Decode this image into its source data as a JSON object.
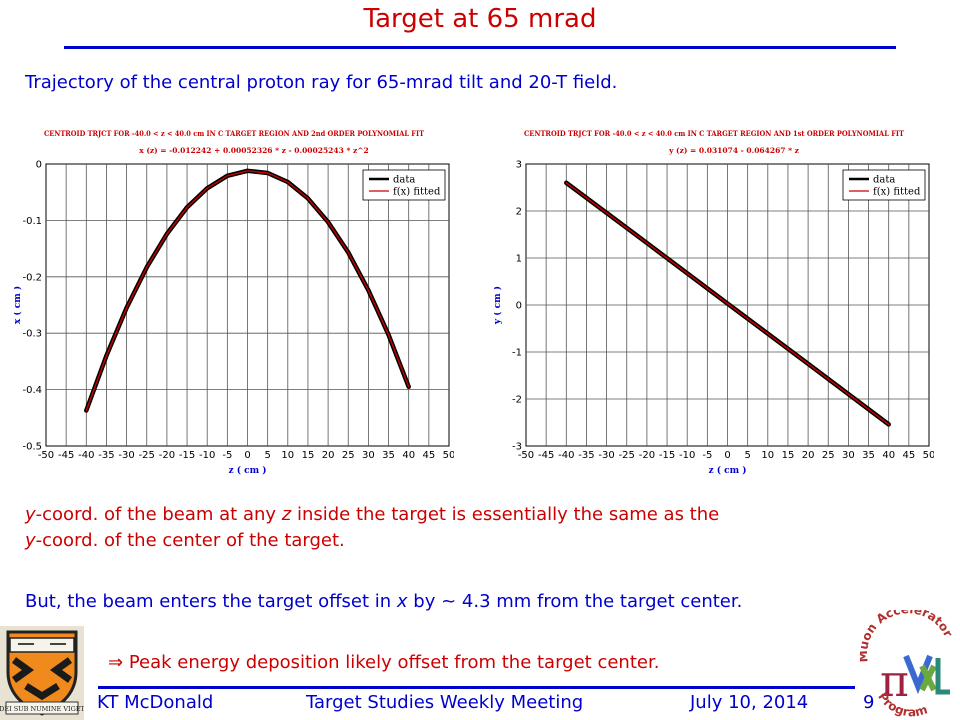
{
  "slide": {
    "title": "Target at 65 mrad",
    "subtitle": "Trajectory of the central proton ray for 65-mrad tilt and 20-T field.",
    "para_y": {
      "y_var": "y",
      "text1": "-coord. of the beam at any ",
      "z_var": "z",
      "text2": " inside the target is essentially the same as the ",
      "y_var2": "y",
      "text3": "-coord. of the center of the target."
    },
    "para_x": {
      "text1": "But, the beam enters the target offset in ",
      "x_var": "x",
      "text2": " by ~ 4.3 mm from the target center."
    },
    "peak": {
      "arrow": "⇒",
      "text": "Peak energy deposition likely offset from the target center."
    }
  },
  "footer": {
    "author": "KT McDonald",
    "meeting": "Target Studies Weekly Meeting",
    "date": "July 10, 2014",
    "page": "9"
  },
  "logos": {
    "princeton_motto": "DEI SUB NUMINE VIGET",
    "map_text_top": "Muon Accelerator",
    "map_text_bottom": "Program",
    "map_pi": "π"
  },
  "chart_data": [
    {
      "type": "line",
      "title": "CENTROID TRJCT FOR -40.0 < z < 40.0 cm IN C TARGET REGION AND 2nd ORDER POLYNOMIAL FIT",
      "fit_equation": "x (z) = -0.012242 + 0.00052326 * z - 0.00025243 * z^2",
      "xlabel": "z ( cm )",
      "ylabel": "x ( cm )",
      "xlim": [
        -50,
        50
      ],
      "ylim": [
        -0.5,
        0
      ],
      "xticks": [
        -50,
        -45,
        -40,
        -35,
        -30,
        -25,
        -20,
        -15,
        -10,
        -5,
        0,
        5,
        10,
        15,
        20,
        25,
        30,
        35,
        40,
        45,
        50
      ],
      "yticks": [
        0,
        -0.1,
        -0.2,
        -0.3,
        -0.4,
        -0.5
      ],
      "ytick_labels": [
        "0",
        "-0.1",
        "-0.2",
        "-0.3",
        "-0.4",
        "-0.5"
      ],
      "grid": true,
      "legend_position": "top-right",
      "series": [
        {
          "name": "data",
          "color": "#000000",
          "x": [
            -40,
            -35,
            -30,
            -25,
            -20,
            -15,
            -10,
            -5,
            0,
            5,
            10,
            15,
            20,
            25,
            30,
            35,
            40
          ],
          "y": [
            -0.437,
            -0.34,
            -0.255,
            -0.183,
            -0.124,
            -0.077,
            -0.043,
            -0.021,
            -0.012,
            -0.016,
            -0.032,
            -0.061,
            -0.103,
            -0.157,
            -0.224,
            -0.303,
            -0.395
          ]
        },
        {
          "name": "f(x) fitted",
          "color": "#cc0000",
          "x": [
            -40,
            -35,
            -30,
            -25,
            -20,
            -15,
            -10,
            -5,
            0,
            5,
            10,
            15,
            20,
            25,
            30,
            35,
            40
          ],
          "y": [
            -0.437,
            -0.34,
            -0.255,
            -0.183,
            -0.124,
            -0.077,
            -0.043,
            -0.021,
            -0.012,
            -0.016,
            -0.032,
            -0.061,
            -0.103,
            -0.157,
            -0.224,
            -0.303,
            -0.395
          ]
        }
      ]
    },
    {
      "type": "line",
      "title": "CENTROID TRJCT FOR -40.0 < z < 40.0 cm IN C TARGET REGION AND 1st ORDER POLYNOMIAL FIT",
      "fit_equation": "y (z) = 0.031074 - 0.064267 * z",
      "xlabel": "z ( cm )",
      "ylabel": "y ( cm )",
      "xlim": [
        -50,
        50
      ],
      "ylim": [
        -3,
        3
      ],
      "xticks": [
        -50,
        -45,
        -40,
        -35,
        -30,
        -25,
        -20,
        -15,
        -10,
        -5,
        0,
        5,
        10,
        15,
        20,
        25,
        30,
        35,
        40,
        45,
        50
      ],
      "yticks": [
        3,
        2,
        1,
        0,
        -1,
        -2,
        -3
      ],
      "ytick_labels": [
        "3",
        "2",
        "1",
        "0",
        "-1",
        "-2",
        "-3"
      ],
      "grid": true,
      "legend_position": "top-right",
      "series": [
        {
          "name": "data",
          "color": "#000000",
          "x": [
            -40,
            -20,
            0,
            20,
            40
          ],
          "y": [
            2.6,
            1.32,
            0.03,
            -1.25,
            -2.54
          ]
        },
        {
          "name": "f(x) fitted",
          "color": "#cc0000",
          "x": [
            -40,
            -20,
            0,
            20,
            40
          ],
          "y": [
            2.6,
            1.32,
            0.03,
            -1.25,
            -2.54
          ]
        }
      ]
    }
  ]
}
